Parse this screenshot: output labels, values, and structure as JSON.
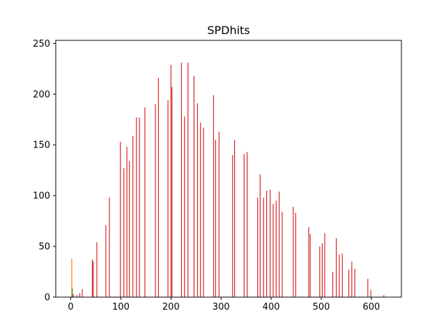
{
  "chart_data": {
    "type": "bar",
    "title": "SPDhits",
    "xlabel": "",
    "ylabel": "",
    "xlim": [
      -30,
      660
    ],
    "ylim": [
      0,
      253
    ],
    "xticks": [
      0,
      100,
      200,
      300,
      400,
      500,
      600
    ],
    "yticks": [
      0,
      50,
      100,
      150,
      200,
      250
    ],
    "grid": false,
    "legend": "none",
    "series": [
      {
        "color": "#1f77b4",
        "x": [
          3
        ],
        "values": [
          2
        ]
      },
      {
        "color": "#ff7f0e",
        "x": [
          2
        ],
        "values": [
          38
        ]
      },
      {
        "color": "#2ca02c",
        "x": [
          3
        ],
        "values": [
          9
        ]
      },
      {
        "color": "#d62728",
        "x": [
          5,
          12,
          18,
          23,
          43,
          45,
          52,
          70,
          77,
          99,
          106,
          112,
          117,
          124,
          131,
          137,
          148,
          169,
          175,
          194,
          200,
          202,
          221,
          227,
          234,
          246,
          253,
          259,
          265,
          285,
          289,
          296,
          323,
          327,
          346,
          352,
          373,
          378,
          385,
          391,
          398,
          404,
          410,
          416,
          422,
          444,
          449,
          475,
          478,
          497,
          502,
          507,
          523,
          530,
          536,
          542,
          555,
          561,
          567,
          593,
          599,
          625
        ],
        "values": [
          3,
          2,
          4,
          8,
          37,
          35,
          54,
          71,
          98,
          153,
          127,
          148,
          134,
          159,
          177,
          177,
          187,
          190,
          216,
          194,
          229,
          207,
          231,
          178,
          231,
          218,
          191,
          172,
          167,
          199,
          155,
          163,
          140,
          155,
          141,
          143,
          98,
          121,
          98,
          105,
          106,
          92,
          95,
          104,
          84,
          89,
          83,
          69,
          62,
          50,
          53,
          63,
          25,
          58,
          42,
          43,
          27,
          35,
          28,
          18,
          7,
          2
        ]
      }
    ]
  }
}
